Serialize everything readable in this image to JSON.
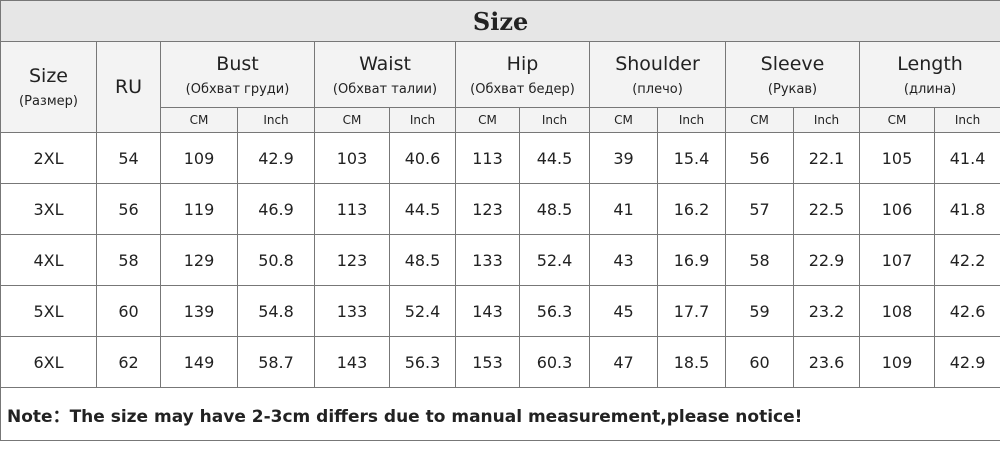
{
  "title": "Size",
  "columns": [
    {
      "label": "Size",
      "sub": "(Размер)"
    },
    {
      "label": "RU"
    }
  ],
  "measures": [
    {
      "label": "Bust",
      "sub": "(Обхват груди)"
    },
    {
      "label": "Waist",
      "sub": "(Обхват талии)"
    },
    {
      "label": "Hip",
      "sub": "(Обхват бедер)"
    },
    {
      "label": "Shoulder",
      "sub": "(плечо)"
    },
    {
      "label": "Sleeve",
      "sub": "(Рукав)"
    },
    {
      "label": "Length",
      "sub": "(длина)"
    }
  ],
  "units": [
    "CM",
    "Inch"
  ],
  "rows": [
    {
      "size": "2XL",
      "ru": 54,
      "values": [
        109,
        42.9,
        103,
        40.6,
        113,
        44.5,
        39,
        15.4,
        56,
        22.1,
        105,
        41.4
      ]
    },
    {
      "size": "3XL",
      "ru": 56,
      "values": [
        119,
        46.9,
        113,
        44.5,
        123,
        48.5,
        41,
        16.2,
        57,
        22.5,
        106,
        41.8
      ]
    },
    {
      "size": "4XL",
      "ru": 58,
      "values": [
        129,
        50.8,
        123,
        48.5,
        133,
        52.4,
        43,
        16.9,
        58,
        22.9,
        107,
        42.2
      ]
    },
    {
      "size": "5XL",
      "ru": 60,
      "values": [
        139,
        54.8,
        133,
        52.4,
        143,
        56.3,
        45,
        17.7,
        59,
        23.2,
        108,
        42.6
      ]
    },
    {
      "size": "6XL",
      "ru": 62,
      "values": [
        149,
        58.7,
        143,
        56.3,
        153,
        60.3,
        47,
        18.5,
        60,
        23.6,
        109,
        42.9
      ]
    }
  ],
  "note": "Note：The size may have 2-3cm differs due to manual measurement,please notice!"
}
